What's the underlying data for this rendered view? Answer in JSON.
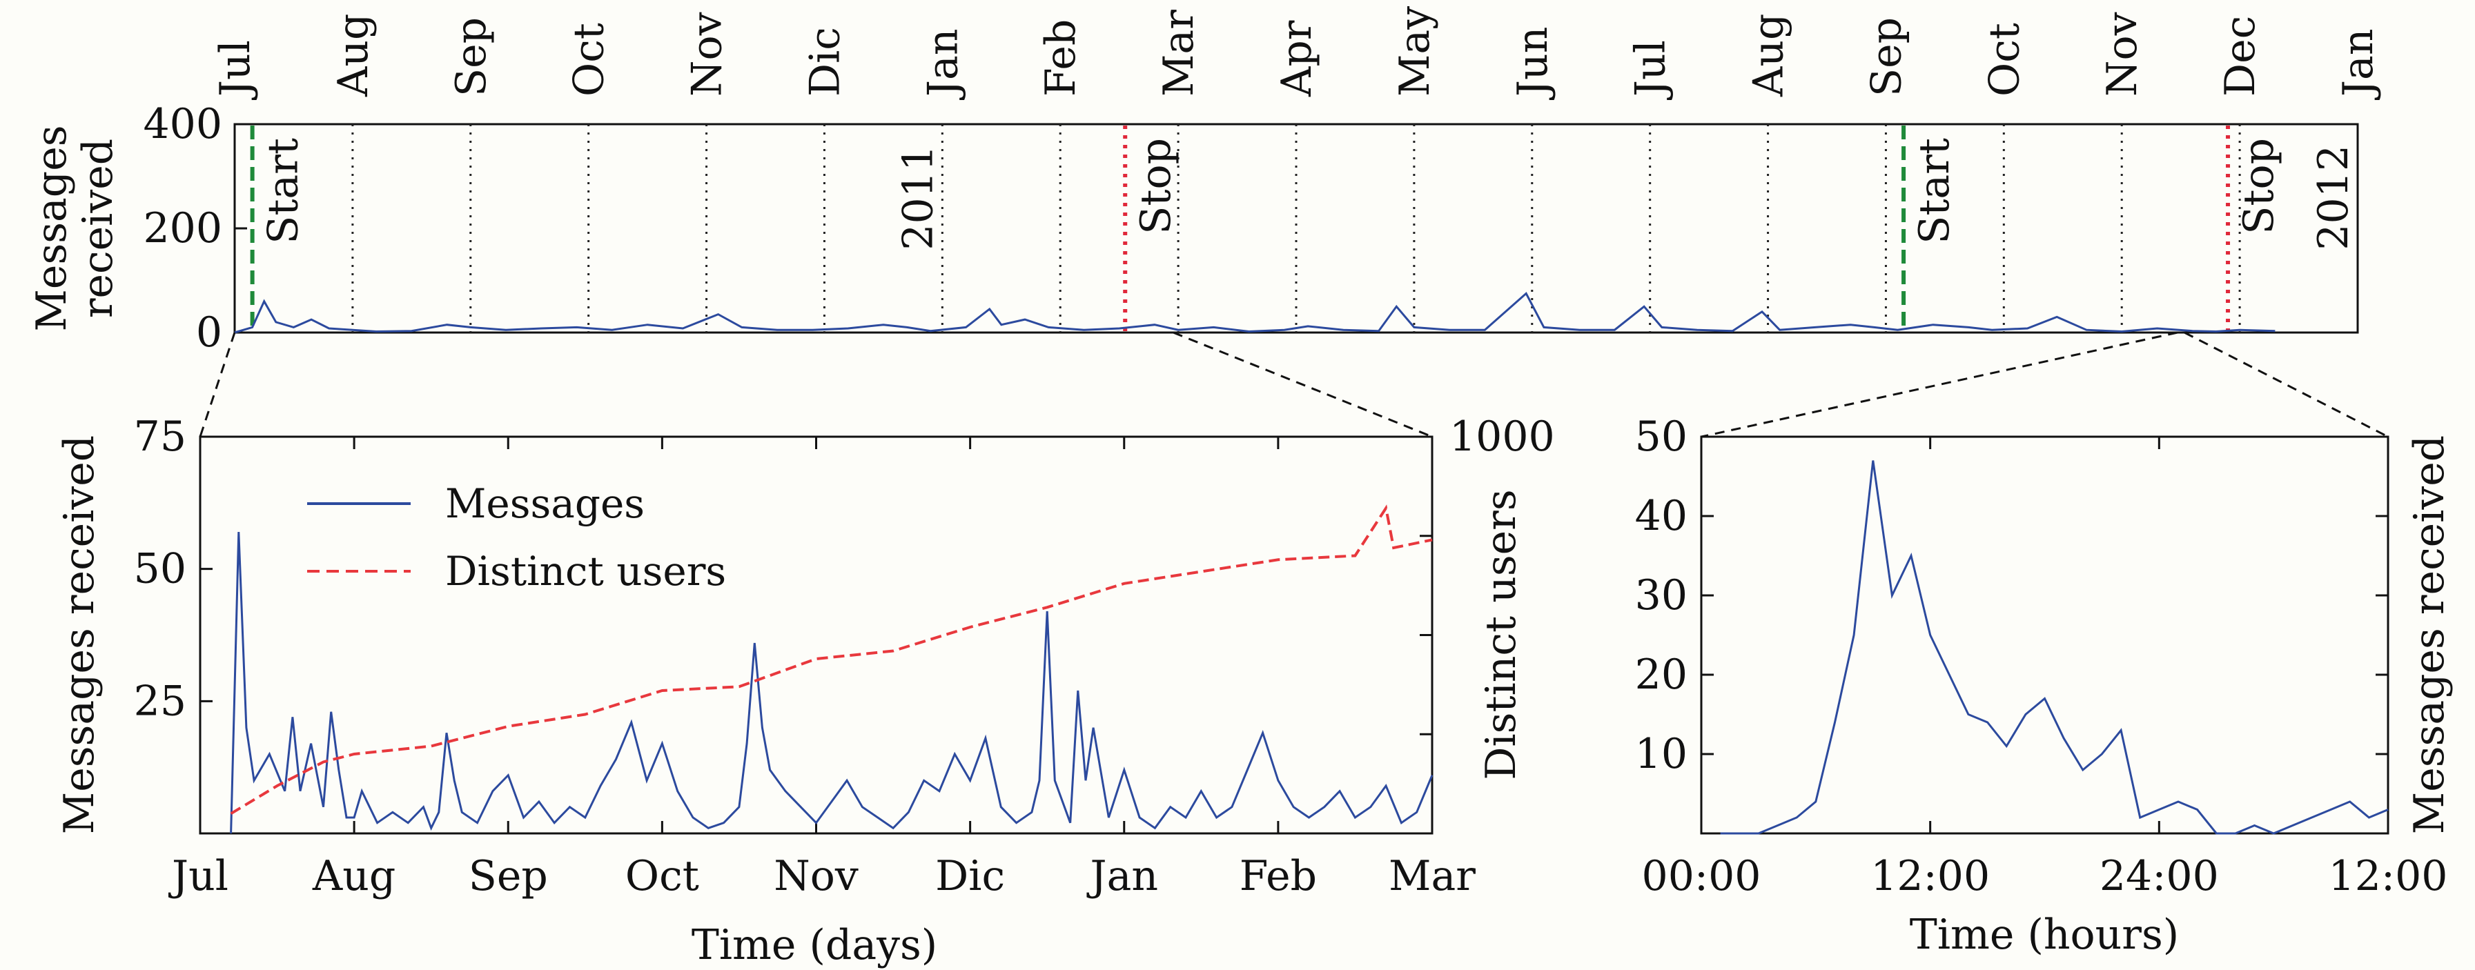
{
  "chart_data": [
    {
      "id": "overview",
      "type": "line",
      "ylabel_lines": [
        "Messages",
        "received"
      ],
      "ylim": [
        0,
        400
      ],
      "yticks": [
        0,
        200,
        400
      ],
      "month_ticks": [
        "Jul",
        "Aug",
        "Sep",
        "Oct",
        "Nov",
        "Dic",
        "Jan",
        "Feb",
        "Mar",
        "Apr",
        "May",
        "Jun",
        "Jul",
        "Aug",
        "Sep",
        "Oct",
        "Nov",
        "Dec",
        "Jan"
      ],
      "x_unit": "months since Jul 2010",
      "xlim": [
        0,
        18
      ],
      "year_markers": [
        {
          "label": "2011",
          "x": 6
        },
        {
          "label": "2012",
          "x": 18
        }
      ],
      "events": [
        {
          "label": "Start",
          "x": 0.15,
          "style": "green-dashed"
        },
        {
          "label": "Stop",
          "x": 7.55,
          "style": "red-dotted"
        },
        {
          "label": "Start",
          "x": 14.15,
          "style": "green-dashed"
        },
        {
          "label": "Stop",
          "x": 16.9,
          "style": "red-dotted"
        }
      ],
      "series": [
        {
          "color": "#2c4a9e",
          "points": [
            [
              0,
              0
            ],
            [
              0.15,
              10
            ],
            [
              0.25,
              60
            ],
            [
              0.35,
              20
            ],
            [
              0.5,
              10
            ],
            [
              0.65,
              25
            ],
            [
              0.8,
              8
            ],
            [
              1,
              5
            ],
            [
              1.2,
              2
            ],
            [
              1.5,
              3
            ],
            [
              1.8,
              15
            ],
            [
              2,
              10
            ],
            [
              2.3,
              5
            ],
            [
              2.6,
              8
            ],
            [
              2.9,
              10
            ],
            [
              3.2,
              5
            ],
            [
              3.5,
              15
            ],
            [
              3.8,
              8
            ],
            [
              4.1,
              35
            ],
            [
              4.3,
              10
            ],
            [
              4.6,
              5
            ],
            [
              4.9,
              5
            ],
            [
              5.2,
              8
            ],
            [
              5.5,
              15
            ],
            [
              5.7,
              10
            ],
            [
              5.9,
              3
            ],
            [
              6.2,
              10
            ],
            [
              6.4,
              45
            ],
            [
              6.5,
              15
            ],
            [
              6.7,
              25
            ],
            [
              6.9,
              10
            ],
            [
              7.2,
              5
            ],
            [
              7.5,
              8
            ],
            [
              7.8,
              15
            ],
            [
              8,
              5
            ],
            [
              8.3,
              10
            ],
            [
              8.6,
              2
            ],
            [
              8.9,
              5
            ],
            [
              9.1,
              12
            ],
            [
              9.4,
              5
            ],
            [
              9.7,
              3
            ],
            [
              9.85,
              50
            ],
            [
              10,
              10
            ],
            [
              10.3,
              5
            ],
            [
              10.6,
              5
            ],
            [
              10.95,
              75
            ],
            [
              11.1,
              10
            ],
            [
              11.4,
              5
            ],
            [
              11.7,
              5
            ],
            [
              11.95,
              50
            ],
            [
              12.1,
              10
            ],
            [
              12.4,
              5
            ],
            [
              12.7,
              3
            ],
            [
              12.95,
              40
            ],
            [
              13.1,
              5
            ],
            [
              13.4,
              10
            ],
            [
              13.7,
              15
            ],
            [
              13.9,
              10
            ],
            [
              14.1,
              5
            ],
            [
              14.4,
              15
            ],
            [
              14.7,
              10
            ],
            [
              14.9,
              5
            ],
            [
              15.2,
              8
            ],
            [
              15.45,
              30
            ],
            [
              15.7,
              5
            ],
            [
              16,
              2
            ],
            [
              16.3,
              8
            ],
            [
              16.6,
              3
            ],
            [
              16.8,
              2
            ],
            [
              17,
              5
            ],
            [
              17.3,
              3
            ]
          ]
        }
      ]
    },
    {
      "id": "zoom-days",
      "type": "line",
      "xlabel": "Time (days)",
      "ylabel": "Messages received",
      "ylabel_right": "Distinct users",
      "categories": [
        "Jul",
        "Aug",
        "Sep",
        "Oct",
        "Nov",
        "Dic",
        "Jan",
        "Feb",
        "Mar"
      ],
      "x_unit": "months since Jul 2010",
      "xlim": [
        0,
        8
      ],
      "ylim": [
        0,
        75
      ],
      "yticks": [
        25,
        50,
        75
      ],
      "ylim_right": [
        0,
        1000
      ],
      "yticks_right": [
        1000
      ],
      "legend_position": "top-left",
      "series": [
        {
          "name": "Messages",
          "axis": "left",
          "color": "#2c4a9e",
          "style": "solid",
          "points": [
            [
              0.2,
              0
            ],
            [
              0.25,
              57
            ],
            [
              0.3,
              20
            ],
            [
              0.35,
              10
            ],
            [
              0.45,
              15
            ],
            [
              0.55,
              8
            ],
            [
              0.6,
              22
            ],
            [
              0.65,
              8
            ],
            [
              0.72,
              17
            ],
            [
              0.8,
              5
            ],
            [
              0.85,
              23
            ],
            [
              0.9,
              12
            ],
            [
              0.95,
              3
            ],
            [
              1,
              3
            ],
            [
              1.05,
              8
            ],
            [
              1.15,
              2
            ],
            [
              1.25,
              4
            ],
            [
              1.35,
              2
            ],
            [
              1.45,
              5
            ],
            [
              1.5,
              1
            ],
            [
              1.55,
              4
            ],
            [
              1.6,
              19
            ],
            [
              1.65,
              10
            ],
            [
              1.7,
              4
            ],
            [
              1.8,
              2
            ],
            [
              1.9,
              8
            ],
            [
              2,
              11
            ],
            [
              2.1,
              3
            ],
            [
              2.2,
              6
            ],
            [
              2.3,
              2
            ],
            [
              2.4,
              5
            ],
            [
              2.5,
              3
            ],
            [
              2.6,
              9
            ],
            [
              2.7,
              14
            ],
            [
              2.8,
              21
            ],
            [
              2.9,
              10
            ],
            [
              3,
              17
            ],
            [
              3.1,
              8
            ],
            [
              3.2,
              3
            ],
            [
              3.3,
              1
            ],
            [
              3.4,
              2
            ],
            [
              3.5,
              5
            ],
            [
              3.55,
              17
            ],
            [
              3.6,
              36
            ],
            [
              3.65,
              20
            ],
            [
              3.7,
              12
            ],
            [
              3.8,
              8
            ],
            [
              3.9,
              5
            ],
            [
              4,
              2
            ],
            [
              4.1,
              6
            ],
            [
              4.2,
              10
            ],
            [
              4.3,
              5
            ],
            [
              4.4,
              3
            ],
            [
              4.5,
              1
            ],
            [
              4.6,
              4
            ],
            [
              4.7,
              10
            ],
            [
              4.8,
              8
            ],
            [
              4.9,
              15
            ],
            [
              5,
              10
            ],
            [
              5.1,
              18
            ],
            [
              5.2,
              5
            ],
            [
              5.3,
              2
            ],
            [
              5.4,
              4
            ],
            [
              5.45,
              10
            ],
            [
              5.5,
              42
            ],
            [
              5.55,
              10
            ],
            [
              5.65,
              2
            ],
            [
              5.7,
              27
            ],
            [
              5.75,
              10
            ],
            [
              5.8,
              20
            ],
            [
              5.9,
              3
            ],
            [
              6,
              12
            ],
            [
              6.1,
              3
            ],
            [
              6.2,
              1
            ],
            [
              6.3,
              5
            ],
            [
              6.4,
              3
            ],
            [
              6.5,
              8
            ],
            [
              6.6,
              3
            ],
            [
              6.7,
              5
            ],
            [
              6.8,
              12
            ],
            [
              6.9,
              19
            ],
            [
              7,
              10
            ],
            [
              7.1,
              5
            ],
            [
              7.2,
              3
            ],
            [
              7.3,
              5
            ],
            [
              7.4,
              8
            ],
            [
              7.5,
              3
            ],
            [
              7.6,
              5
            ],
            [
              7.7,
              9
            ],
            [
              7.8,
              2
            ],
            [
              7.9,
              4
            ],
            [
              8,
              11
            ]
          ]
        },
        {
          "name": "Distinct users",
          "axis": "right",
          "color": "#e8383d",
          "style": "dashed",
          "points": [
            [
              0.2,
              50
            ],
            [
              0.5,
              120
            ],
            [
              0.8,
              180
            ],
            [
              1,
              200
            ],
            [
              1.5,
              220
            ],
            [
              2,
              270
            ],
            [
              2.5,
              300
            ],
            [
              3,
              360
            ],
            [
              3.5,
              370
            ],
            [
              4,
              440
            ],
            [
              4.5,
              460
            ],
            [
              5,
              520
            ],
            [
              5.5,
              570
            ],
            [
              6,
              630
            ],
            [
              6.5,
              660
            ],
            [
              7,
              690
            ],
            [
              7.5,
              700
            ],
            [
              7.7,
              820
            ],
            [
              7.75,
              720
            ],
            [
              8,
              740
            ]
          ]
        }
      ]
    },
    {
      "id": "zoom-hours",
      "type": "line",
      "xlabel": "Time (hours)",
      "ylabel_right": "Messages received",
      "categories": [
        "00:00",
        "12:00",
        "24:00",
        "12:00"
      ],
      "x_unit": "hours after the first 00:00",
      "xlim": [
        0,
        36
      ],
      "ylim": [
        0,
        50
      ],
      "yticks": [
        10,
        20,
        30,
        40,
        50
      ],
      "series": [
        {
          "color": "#2c4a9e",
          "points": [
            [
              1,
              0
            ],
            [
              2,
              0
            ],
            [
              3,
              0
            ],
            [
              4,
              1
            ],
            [
              5,
              2
            ],
            [
              6,
              4
            ],
            [
              7,
              14
            ],
            [
              8,
              25
            ],
            [
              9,
              47
            ],
            [
              10,
              30
            ],
            [
              11,
              35
            ],
            [
              12,
              25
            ],
            [
              13,
              20
            ],
            [
              14,
              15
            ],
            [
              15,
              14
            ],
            [
              16,
              11
            ],
            [
              17,
              15
            ],
            [
              18,
              17
            ],
            [
              19,
              12
            ],
            [
              20,
              8
            ],
            [
              21,
              10
            ],
            [
              22,
              13
            ],
            [
              23,
              2
            ],
            [
              24,
              3
            ],
            [
              25,
              4
            ],
            [
              26,
              3
            ],
            [
              27,
              0
            ],
            [
              28,
              0
            ],
            [
              29,
              1
            ],
            [
              30,
              0
            ],
            [
              31,
              1
            ],
            [
              32,
              2
            ],
            [
              33,
              3
            ],
            [
              34,
              4
            ],
            [
              35,
              2
            ],
            [
              36,
              3
            ]
          ]
        }
      ]
    }
  ]
}
